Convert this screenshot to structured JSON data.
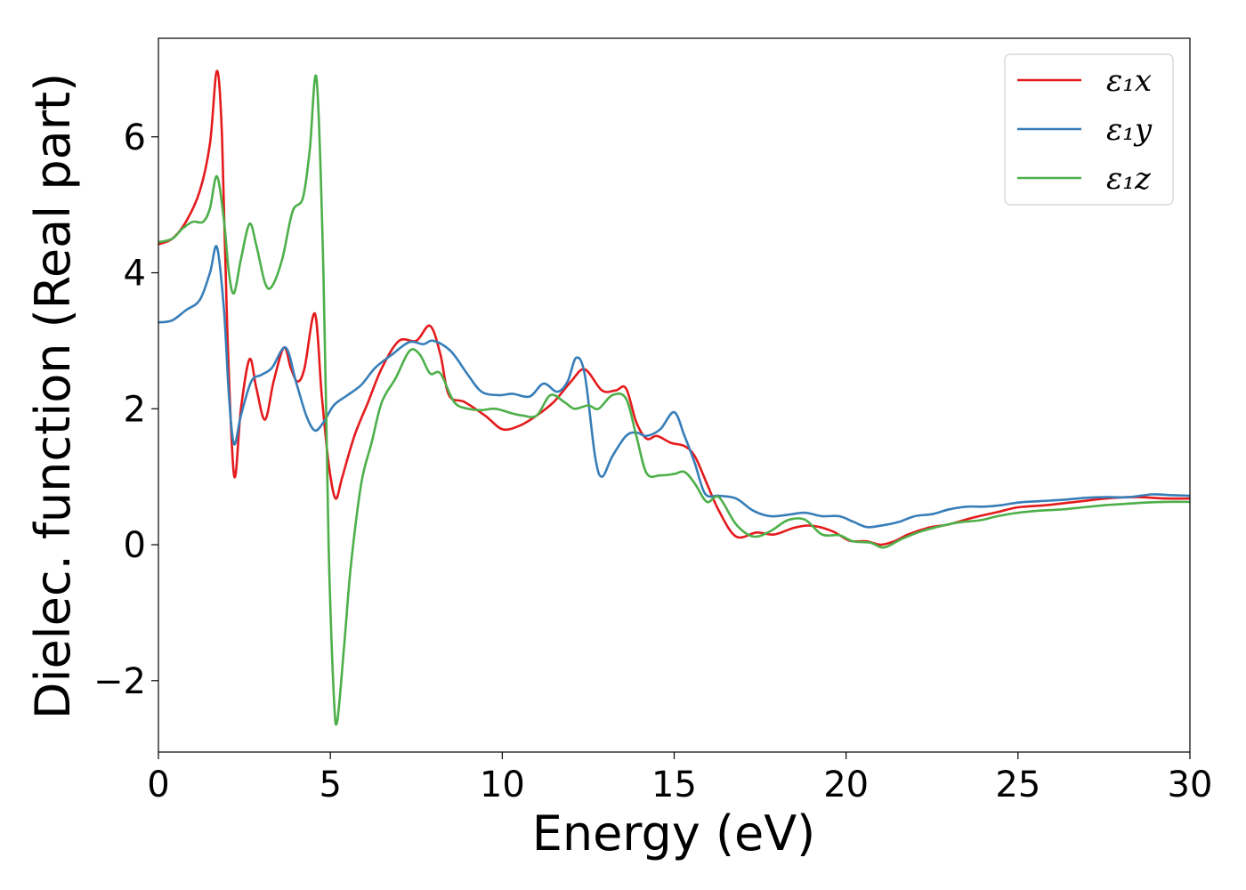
{
  "chart_data": {
    "type": "line",
    "xlabel": "Energy (eV)",
    "ylabel": "Dielec. function (Real part)",
    "xlim": [
      0,
      30
    ],
    "ylim": [
      -3.05,
      7.45
    ],
    "x_ticks": [
      "0",
      "5",
      "10",
      "15",
      "20",
      "25",
      "30"
    ],
    "y_ticks": [
      "−2",
      "0",
      "2",
      "4",
      "6"
    ],
    "legend_placement": "top-right",
    "grid": false,
    "series": [
      {
        "name": "ε₁x",
        "color": "#e41a1c",
        "points": [
          [
            0,
            4.42
          ],
          [
            0.4,
            4.5
          ],
          [
            0.8,
            4.75
          ],
          [
            1.2,
            5.2
          ],
          [
            1.5,
            5.9
          ],
          [
            1.7,
            6.97
          ],
          [
            1.85,
            6.0
          ],
          [
            2.0,
            3.2
          ],
          [
            2.2,
            1.02
          ],
          [
            2.4,
            2.0
          ],
          [
            2.65,
            2.73
          ],
          [
            2.85,
            2.3
          ],
          [
            3.1,
            1.84
          ],
          [
            3.35,
            2.4
          ],
          [
            3.65,
            2.9
          ],
          [
            3.85,
            2.6
          ],
          [
            4.05,
            2.4
          ],
          [
            4.25,
            2.6
          ],
          [
            4.55,
            3.4
          ],
          [
            4.75,
            2.2
          ],
          [
            4.95,
            1.2
          ],
          [
            5.15,
            0.68
          ],
          [
            5.35,
            1.0
          ],
          [
            5.7,
            1.6
          ],
          [
            6.1,
            2.1
          ],
          [
            6.5,
            2.6
          ],
          [
            7.0,
            3.0
          ],
          [
            7.5,
            3.0
          ],
          [
            7.9,
            3.22
          ],
          [
            8.2,
            2.8
          ],
          [
            8.45,
            2.2
          ],
          [
            8.9,
            2.1
          ],
          [
            9.5,
            1.9
          ],
          [
            10.0,
            1.7
          ],
          [
            10.5,
            1.75
          ],
          [
            11.0,
            1.9
          ],
          [
            11.5,
            2.1
          ],
          [
            12.0,
            2.4
          ],
          [
            12.4,
            2.58
          ],
          [
            12.9,
            2.27
          ],
          [
            13.3,
            2.27
          ],
          [
            13.6,
            2.3
          ],
          [
            13.9,
            1.8
          ],
          [
            14.2,
            1.56
          ],
          [
            14.5,
            1.6
          ],
          [
            14.9,
            1.5
          ],
          [
            15.3,
            1.45
          ],
          [
            15.6,
            1.3
          ],
          [
            15.95,
            0.9
          ],
          [
            16.3,
            0.5
          ],
          [
            16.8,
            0.12
          ],
          [
            17.4,
            0.18
          ],
          [
            17.9,
            0.15
          ],
          [
            18.5,
            0.25
          ],
          [
            19.0,
            0.28
          ],
          [
            19.6,
            0.2
          ],
          [
            20.1,
            0.06
          ],
          [
            20.6,
            0.05
          ],
          [
            21.0,
            0.0
          ],
          [
            21.4,
            0.05
          ],
          [
            21.8,
            0.15
          ],
          [
            22.4,
            0.25
          ],
          [
            23.0,
            0.3
          ],
          [
            23.7,
            0.4
          ],
          [
            24.4,
            0.48
          ],
          [
            25.0,
            0.55
          ],
          [
            25.8,
            0.58
          ],
          [
            26.5,
            0.62
          ],
          [
            27.2,
            0.66
          ],
          [
            27.8,
            0.69
          ],
          [
            28.5,
            0.7
          ],
          [
            29.3,
            0.68
          ],
          [
            30.0,
            0.68
          ]
        ]
      },
      {
        "name": "ε₁y",
        "color": "#377eb8",
        "points": [
          [
            0,
            3.27
          ],
          [
            0.4,
            3.3
          ],
          [
            0.8,
            3.45
          ],
          [
            1.2,
            3.6
          ],
          [
            1.5,
            4.0
          ],
          [
            1.7,
            4.38
          ],
          [
            1.9,
            3.5
          ],
          [
            2.05,
            2.2
          ],
          [
            2.2,
            1.48
          ],
          [
            2.4,
            1.9
          ],
          [
            2.7,
            2.4
          ],
          [
            3.0,
            2.5
          ],
          [
            3.3,
            2.6
          ],
          [
            3.7,
            2.9
          ],
          [
            4.0,
            2.4
          ],
          [
            4.3,
            1.9
          ],
          [
            4.55,
            1.68
          ],
          [
            4.8,
            1.8
          ],
          [
            5.1,
            2.05
          ],
          [
            5.5,
            2.2
          ],
          [
            5.9,
            2.35
          ],
          [
            6.3,
            2.6
          ],
          [
            6.8,
            2.8
          ],
          [
            7.3,
            2.98
          ],
          [
            7.7,
            2.95
          ],
          [
            8.0,
            3.0
          ],
          [
            8.5,
            2.85
          ],
          [
            9.0,
            2.5
          ],
          [
            9.4,
            2.25
          ],
          [
            9.9,
            2.2
          ],
          [
            10.3,
            2.22
          ],
          [
            10.8,
            2.18
          ],
          [
            11.2,
            2.37
          ],
          [
            11.6,
            2.25
          ],
          [
            11.9,
            2.4
          ],
          [
            12.15,
            2.75
          ],
          [
            12.4,
            2.5
          ],
          [
            12.7,
            1.3
          ],
          [
            12.9,
            1.0
          ],
          [
            13.2,
            1.3
          ],
          [
            13.6,
            1.6
          ],
          [
            13.9,
            1.65
          ],
          [
            14.2,
            1.6
          ],
          [
            14.6,
            1.7
          ],
          [
            15.0,
            1.95
          ],
          [
            15.3,
            1.6
          ],
          [
            15.6,
            1.2
          ],
          [
            15.9,
            0.75
          ],
          [
            16.3,
            0.72
          ],
          [
            16.8,
            0.68
          ],
          [
            17.3,
            0.5
          ],
          [
            17.8,
            0.42
          ],
          [
            18.3,
            0.44
          ],
          [
            18.8,
            0.47
          ],
          [
            19.3,
            0.42
          ],
          [
            19.8,
            0.42
          ],
          [
            20.2,
            0.34
          ],
          [
            20.6,
            0.26
          ],
          [
            21.0,
            0.28
          ],
          [
            21.5,
            0.33
          ],
          [
            22.0,
            0.42
          ],
          [
            22.5,
            0.45
          ],
          [
            23.0,
            0.52
          ],
          [
            23.5,
            0.56
          ],
          [
            24.0,
            0.56
          ],
          [
            24.5,
            0.58
          ],
          [
            25.0,
            0.62
          ],
          [
            25.6,
            0.64
          ],
          [
            26.3,
            0.66
          ],
          [
            27.0,
            0.69
          ],
          [
            27.6,
            0.7
          ],
          [
            28.2,
            0.7
          ],
          [
            28.9,
            0.74
          ],
          [
            29.4,
            0.73
          ],
          [
            30.0,
            0.72
          ]
        ]
      },
      {
        "name": "ε₁z",
        "color": "#4daf4a",
        "points": [
          [
            0,
            4.45
          ],
          [
            0.4,
            4.5
          ],
          [
            0.7,
            4.65
          ],
          [
            1.0,
            4.75
          ],
          [
            1.3,
            4.75
          ],
          [
            1.5,
            4.95
          ],
          [
            1.7,
            5.42
          ],
          [
            1.9,
            4.8
          ],
          [
            2.05,
            4.0
          ],
          [
            2.2,
            3.7
          ],
          [
            2.4,
            4.2
          ],
          [
            2.65,
            4.72
          ],
          [
            2.85,
            4.4
          ],
          [
            3.1,
            3.85
          ],
          [
            3.3,
            3.8
          ],
          [
            3.6,
            4.2
          ],
          [
            3.9,
            4.9
          ],
          [
            4.2,
            5.1
          ],
          [
            4.4,
            5.8
          ],
          [
            4.6,
            6.85
          ],
          [
            4.8,
            4.0
          ],
          [
            4.95,
            0.0
          ],
          [
            5.1,
            -2.2
          ],
          [
            5.2,
            -2.6
          ],
          [
            5.4,
            -1.5
          ],
          [
            5.6,
            -0.3
          ],
          [
            5.9,
            0.9
          ],
          [
            6.2,
            1.5
          ],
          [
            6.5,
            2.1
          ],
          [
            6.9,
            2.45
          ],
          [
            7.3,
            2.85
          ],
          [
            7.6,
            2.8
          ],
          [
            7.9,
            2.52
          ],
          [
            8.2,
            2.52
          ],
          [
            8.6,
            2.1
          ],
          [
            9.0,
            2.0
          ],
          [
            9.4,
            1.98
          ],
          [
            9.8,
            2.0
          ],
          [
            10.3,
            1.93
          ],
          [
            10.6,
            1.9
          ],
          [
            11.0,
            1.9
          ],
          [
            11.4,
            2.2
          ],
          [
            11.8,
            2.1
          ],
          [
            12.1,
            2.0
          ],
          [
            12.5,
            2.05
          ],
          [
            12.8,
            2.0
          ],
          [
            13.2,
            2.2
          ],
          [
            13.6,
            2.15
          ],
          [
            13.9,
            1.6
          ],
          [
            14.2,
            1.05
          ],
          [
            14.6,
            1.02
          ],
          [
            15.0,
            1.04
          ],
          [
            15.3,
            1.07
          ],
          [
            15.6,
            0.9
          ],
          [
            15.95,
            0.63
          ],
          [
            16.3,
            0.7
          ],
          [
            16.8,
            0.3
          ],
          [
            17.3,
            0.12
          ],
          [
            17.8,
            0.2
          ],
          [
            18.3,
            0.36
          ],
          [
            18.8,
            0.37
          ],
          [
            19.3,
            0.15
          ],
          [
            19.8,
            0.14
          ],
          [
            20.2,
            0.05
          ],
          [
            20.7,
            0.03
          ],
          [
            21.1,
            -0.04
          ],
          [
            21.6,
            0.08
          ],
          [
            22.2,
            0.2
          ],
          [
            22.8,
            0.28
          ],
          [
            23.3,
            0.33
          ],
          [
            23.9,
            0.36
          ],
          [
            24.4,
            0.42
          ],
          [
            25.0,
            0.47
          ],
          [
            25.6,
            0.5
          ],
          [
            26.3,
            0.52
          ],
          [
            26.9,
            0.55
          ],
          [
            27.5,
            0.58
          ],
          [
            28.1,
            0.6
          ],
          [
            28.7,
            0.62
          ],
          [
            29.3,
            0.63
          ],
          [
            30.0,
            0.63
          ]
        ]
      }
    ]
  }
}
